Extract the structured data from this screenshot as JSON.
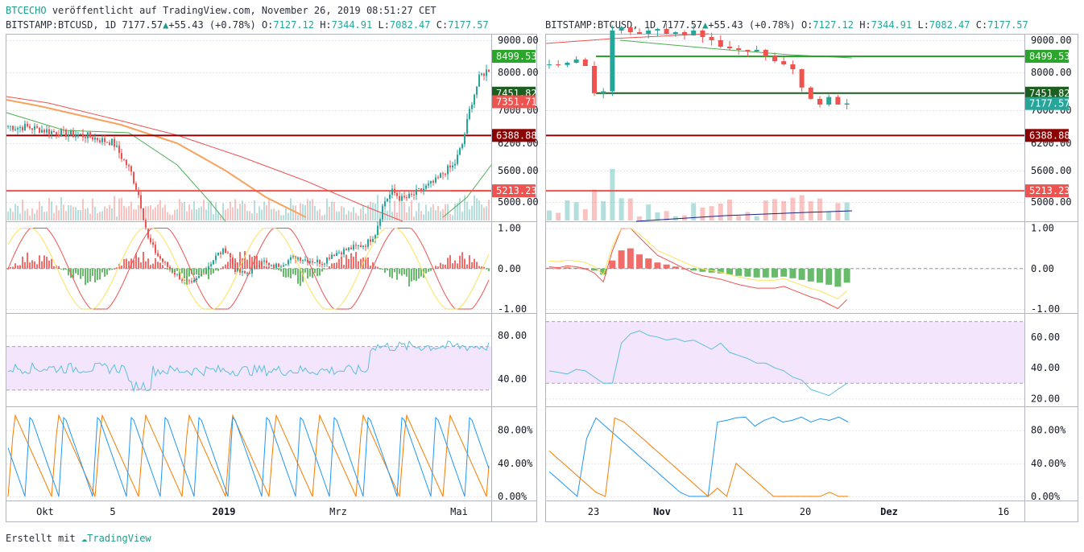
{
  "header": {
    "publisher": "BTCECHO",
    "published_text": "veröffentlicht auf TradingView.com, November 26, 2019 08:51:27 CET"
  },
  "symbol_line": {
    "symbol": "BITSTAMP:BTCUSD,",
    "interval": "1D",
    "last": "7177.57",
    "change": "+55.43 (+0.78%)",
    "o": "7127.12",
    "h": "7344.91",
    "l": "7082.47",
    "c": "7177.57"
  },
  "footer": {
    "created_with": "Erstellt mit",
    "brand": "TradingView"
  },
  "colors": {
    "up": "#26a69a",
    "down": "#ef5350",
    "rsi_band": "#f3e5fc",
    "grid": "#e0e3eb"
  },
  "chart_data": [
    {
      "type": "line",
      "panel": "left-price",
      "symbol": "BITSTAMP:BTCUSD",
      "interval": "1D",
      "x_ticks": [
        "Okt",
        "5",
        "2019",
        "Mrz",
        "Mai"
      ],
      "y_ticks": [
        "9000.00",
        "8000.00",
        "7000.00",
        "6200.00",
        "5600.00",
        "5000.00"
      ],
      "price_labels": [
        {
          "value": "8499.53",
          "color": "#2ba52b"
        },
        {
          "value": "7451.82",
          "color": "#1b5e20"
        },
        {
          "value": "7351.71",
          "color": "#ef5350"
        },
        {
          "value": "6388.88",
          "color": "#8b0000"
        },
        {
          "value": "5213.23",
          "color": "#ef5350"
        }
      ],
      "horizontal_lines": [
        {
          "value": 6388.88,
          "color": "#8b0000"
        },
        {
          "value": 5213.23,
          "color": "#ef5350"
        }
      ],
      "close_series_approx": [
        6620,
        6580,
        6600,
        6560,
        6520,
        6480,
        6450,
        6420,
        6400,
        6380,
        6320,
        6260,
        6220,
        5900,
        5600,
        5100,
        4300,
        4000,
        3800,
        3650,
        3500,
        3420,
        3600,
        3800,
        4000,
        4100,
        3700,
        3620,
        3700,
        3900,
        3750,
        3800,
        3880,
        3950,
        3900,
        3870,
        3850,
        4000,
        4050,
        4100,
        4150,
        4200,
        4400,
        5000,
        5200,
        5050,
        5100,
        5200,
        5300,
        5400,
        5600,
        5700,
        6200,
        7200,
        7900,
        8100
      ]
    },
    {
      "type": "line",
      "panel": "right-price",
      "symbol": "BITSTAMP:BTCUSD",
      "interval": "1D",
      "x_ticks": [
        "23",
        "Nov",
        "11",
        "20",
        "Dez",
        "16"
      ],
      "y_ticks": [
        "9000.00",
        "8000.00",
        "7000.00",
        "6200.00",
        "5600.00",
        "5000.00"
      ],
      "price_labels": [
        {
          "value": "8499.53",
          "color": "#2ba52b"
        },
        {
          "value": "7451.82",
          "color": "#1b5e20"
        },
        {
          "value": "7177.57",
          "color": "#26a69a"
        },
        {
          "value": "6388.88",
          "color": "#8b0000"
        },
        {
          "value": "5213.23",
          "color": "#ef5350"
        }
      ],
      "horizontal_lines": [
        {
          "value": 8499.53,
          "color": "#2ba52b"
        },
        {
          "value": 7451.82,
          "color": "#1b5e20"
        },
        {
          "value": 6388.88,
          "color": "#8b0000"
        },
        {
          "value": 5213.23,
          "color": "#ef5350"
        }
      ],
      "close_series_approx": [
        8250,
        8230,
        8300,
        8400,
        8200,
        7450,
        7500,
        9300,
        9400,
        9250,
        9200,
        9300,
        9350,
        9200,
        9250,
        9150,
        9300,
        9100,
        9000,
        8800,
        8750,
        8700,
        8650,
        8700,
        8500,
        8350,
        8250,
        8100,
        7600,
        7300,
        7150,
        7350,
        7150,
        7180
      ]
    },
    {
      "type": "bar",
      "panel": "left-oscillator",
      "y_ticks": [
        "1.00",
        "0.00",
        "-1.00"
      ],
      "ylim": [
        -1,
        1
      ]
    },
    {
      "type": "bar",
      "panel": "right-oscillator",
      "y_ticks": [
        "1.00",
        "0.00",
        "-1.00"
      ],
      "ylim": [
        -1,
        1
      ],
      "values_approx": [
        0.02,
        0.01,
        0.03,
        0.02,
        0.0,
        -0.05,
        -0.15,
        0.2,
        0.45,
        0.5,
        0.35,
        0.25,
        0.15,
        0.1,
        0.05,
        0.0,
        -0.05,
        -0.08,
        -0.1,
        -0.12,
        -0.15,
        -0.18,
        -0.2,
        -0.22,
        -0.22,
        -0.22,
        -0.2,
        -0.24,
        -0.28,
        -0.32,
        -0.35,
        -0.4,
        -0.45,
        -0.35
      ]
    },
    {
      "type": "line",
      "panel": "left-rsi",
      "y_ticks": [
        "80.00",
        "40.00"
      ],
      "band": [
        30,
        70
      ]
    },
    {
      "type": "line",
      "panel": "right-rsi",
      "y_ticks": [
        "60.00",
        "40.00",
        "20.00"
      ],
      "band": [
        30,
        70
      ],
      "values_approx": [
        38,
        37,
        36,
        39,
        38,
        34,
        30,
        30,
        56,
        62,
        64,
        61,
        60,
        58,
        59,
        57,
        58,
        55,
        52,
        56,
        50,
        48,
        46,
        43,
        43,
        40,
        38,
        34,
        32,
        26,
        24,
        22,
        26,
        30
      ]
    },
    {
      "type": "line",
      "panel": "left-stoch",
      "y_ticks": [
        "80.00%",
        "40.00%",
        "0.00%"
      ],
      "ylim": [
        0,
        100
      ]
    },
    {
      "type": "line",
      "panel": "right-stoch",
      "y_ticks": [
        "80.00%",
        "40.00%",
        "0.00%"
      ],
      "ylim": [
        0,
        100
      ],
      "series": [
        {
          "color": "#2196f3",
          "values_approx": [
            30,
            20,
            10,
            0,
            70,
            95,
            85,
            75,
            65,
            55,
            45,
            35,
            25,
            15,
            5,
            0,
            0,
            0,
            90,
            92,
            95,
            96,
            85,
            92,
            96,
            90,
            92,
            96,
            90,
            94,
            92,
            96,
            90
          ]
        },
        {
          "color": "#f57c00",
          "values_approx": [
            55,
            45,
            35,
            25,
            15,
            5,
            0,
            95,
            90,
            80,
            70,
            60,
            50,
            40,
            30,
            20,
            10,
            0,
            10,
            0,
            40,
            30,
            20,
            10,
            0,
            0,
            0,
            0,
            0,
            0,
            5,
            0,
            0
          ]
        }
      ]
    }
  ]
}
